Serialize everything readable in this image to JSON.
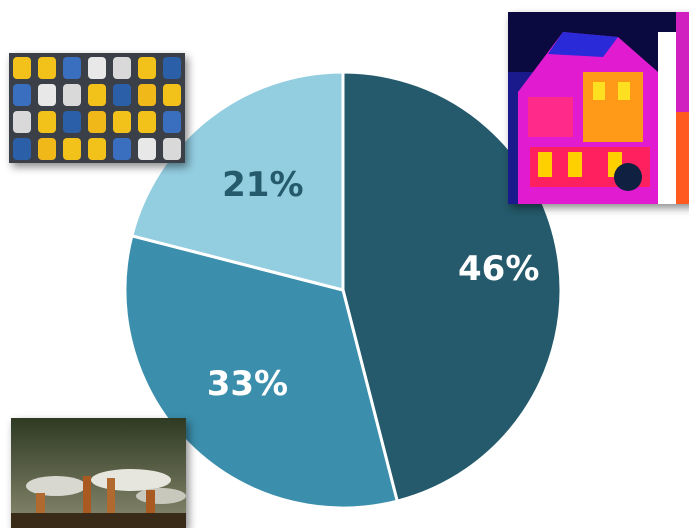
{
  "chart_data": {
    "type": "pie",
    "slices": [
      {
        "label": "46%",
        "value": 46,
        "color": "#245a6b",
        "label_color": "#ffffff"
      },
      {
        "label": "33%",
        "value": 33,
        "color": "#3b8eac",
        "label_color": "#ffffff"
      },
      {
        "label": "21%",
        "value": 21,
        "color": "#93cde0",
        "label_color": "#245a6b"
      }
    ],
    "start_angle_deg": 0,
    "direction": "clockwise",
    "slice_border_color": "#ffffff"
  },
  "images": [
    {
      "name": "traffic-jam-photo"
    },
    {
      "name": "thermal-house-photo"
    },
    {
      "name": "factory-smokestacks-photo"
    }
  ]
}
